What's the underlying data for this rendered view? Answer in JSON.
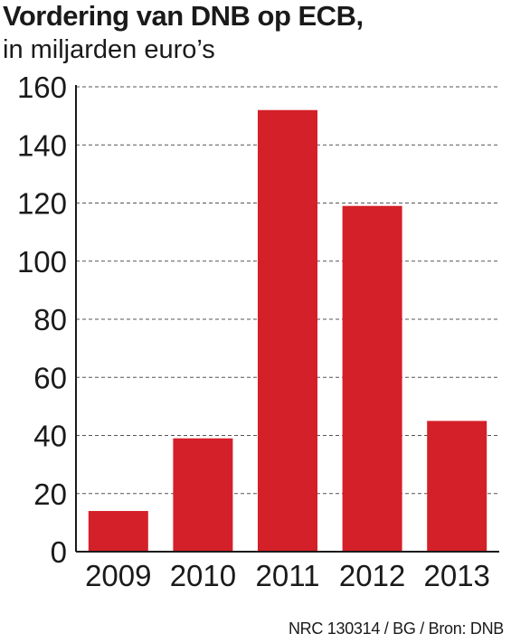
{
  "chart_data": {
    "type": "bar",
    "title": "Vordering van DNB op ECB,",
    "subtitle": "in miljarden euro’s",
    "categories": [
      "2009",
      "2010",
      "2011",
      "2012",
      "2013"
    ],
    "values": [
      14,
      39,
      152,
      119,
      45
    ],
    "y_ticks": [
      "0",
      "20",
      "40",
      "60",
      "80",
      "100",
      "120",
      "140",
      "160"
    ],
    "ylim": [
      0,
      160
    ],
    "grid": "horizontal-dashed",
    "bar_color": "#d42028",
    "source": "NRC 130314 / BG / Bron: DNB"
  }
}
